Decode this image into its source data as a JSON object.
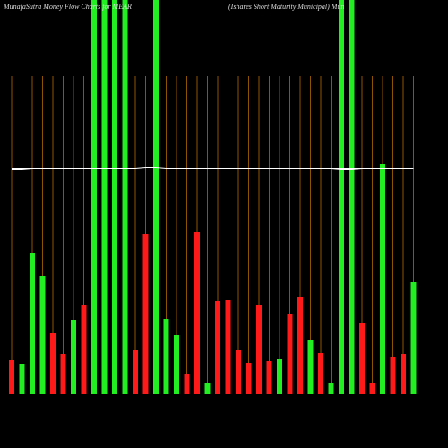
{
  "chart_data": {
    "type": "bar",
    "title": "MunafaSutra  Money Flow  Charts for MEAR",
    "subtitle": "(Ishares Short Maturity Municipal) Mun",
    "categories": [
      null,
      null,
      null,
      null,
      null,
      null,
      null,
      null,
      null,
      null,
      null,
      null,
      null,
      null,
      null,
      null,
      null,
      null,
      null,
      null,
      null,
      null,
      null,
      null,
      null,
      null,
      null,
      null,
      null,
      null,
      null,
      null,
      null,
      null,
      null,
      null,
      null,
      null,
      null,
      null
    ],
    "series": [
      {
        "type": "bar",
        "values": [
          38,
          34,
          158,
          132,
          68,
          45,
          83,
          100,
          440,
          440,
          440,
          440,
          49,
          179,
          440,
          84,
          66,
          23,
          181,
          12,
          104,
          105,
          49,
          35,
          100,
          37,
          39,
          89,
          109,
          61,
          46,
          12,
          440,
          440,
          80,
          13,
          257,
          42,
          45,
          125
        ],
        "colors": [
          "#ff1a1a",
          "#22ee22",
          "#22ee22",
          "#22ee22",
          "#ff1a1a",
          "#ff1a1a",
          "#22ee22",
          "#ff1a1a",
          "#22ee22",
          "#22ee22",
          "#22ee22",
          "#22ee22",
          "#ff1a1a",
          "#ff1a1a",
          "#22ee22",
          "#22ee22",
          "#22ee22",
          "#ff1a1a",
          "#ff1a1a",
          "#22ee22",
          "#ff1a1a",
          "#ff1a1a",
          "#ff1a1a",
          "#ff1a1a",
          "#ff1a1a",
          "#ff1a1a",
          "#22ee22",
          "#ff1a1a",
          "#ff1a1a",
          "#22ee22",
          "#ff1a1a",
          "#22ee22",
          "#22ee22",
          "#22ee22",
          "#ff1a1a",
          "#ff1a1a",
          "#22ee22",
          "#ff1a1a",
          "#ff1a1a",
          "#22ee22"
        ]
      },
      {
        "type": "line",
        "color": "#ffffff",
        "values": [
          251,
          251,
          252,
          252,
          252,
          252,
          252,
          252,
          252,
          252,
          252,
          252,
          252,
          253,
          253,
          252,
          252,
          252,
          252,
          252,
          252,
          252,
          252,
          252,
          252,
          252,
          252,
          252,
          252,
          252,
          252,
          252,
          251,
          251,
          252,
          252,
          252,
          252,
          252,
          252
        ]
      }
    ],
    "ylim": [
      0,
      440
    ],
    "grid": true,
    "grid_color": "#b36b00"
  }
}
